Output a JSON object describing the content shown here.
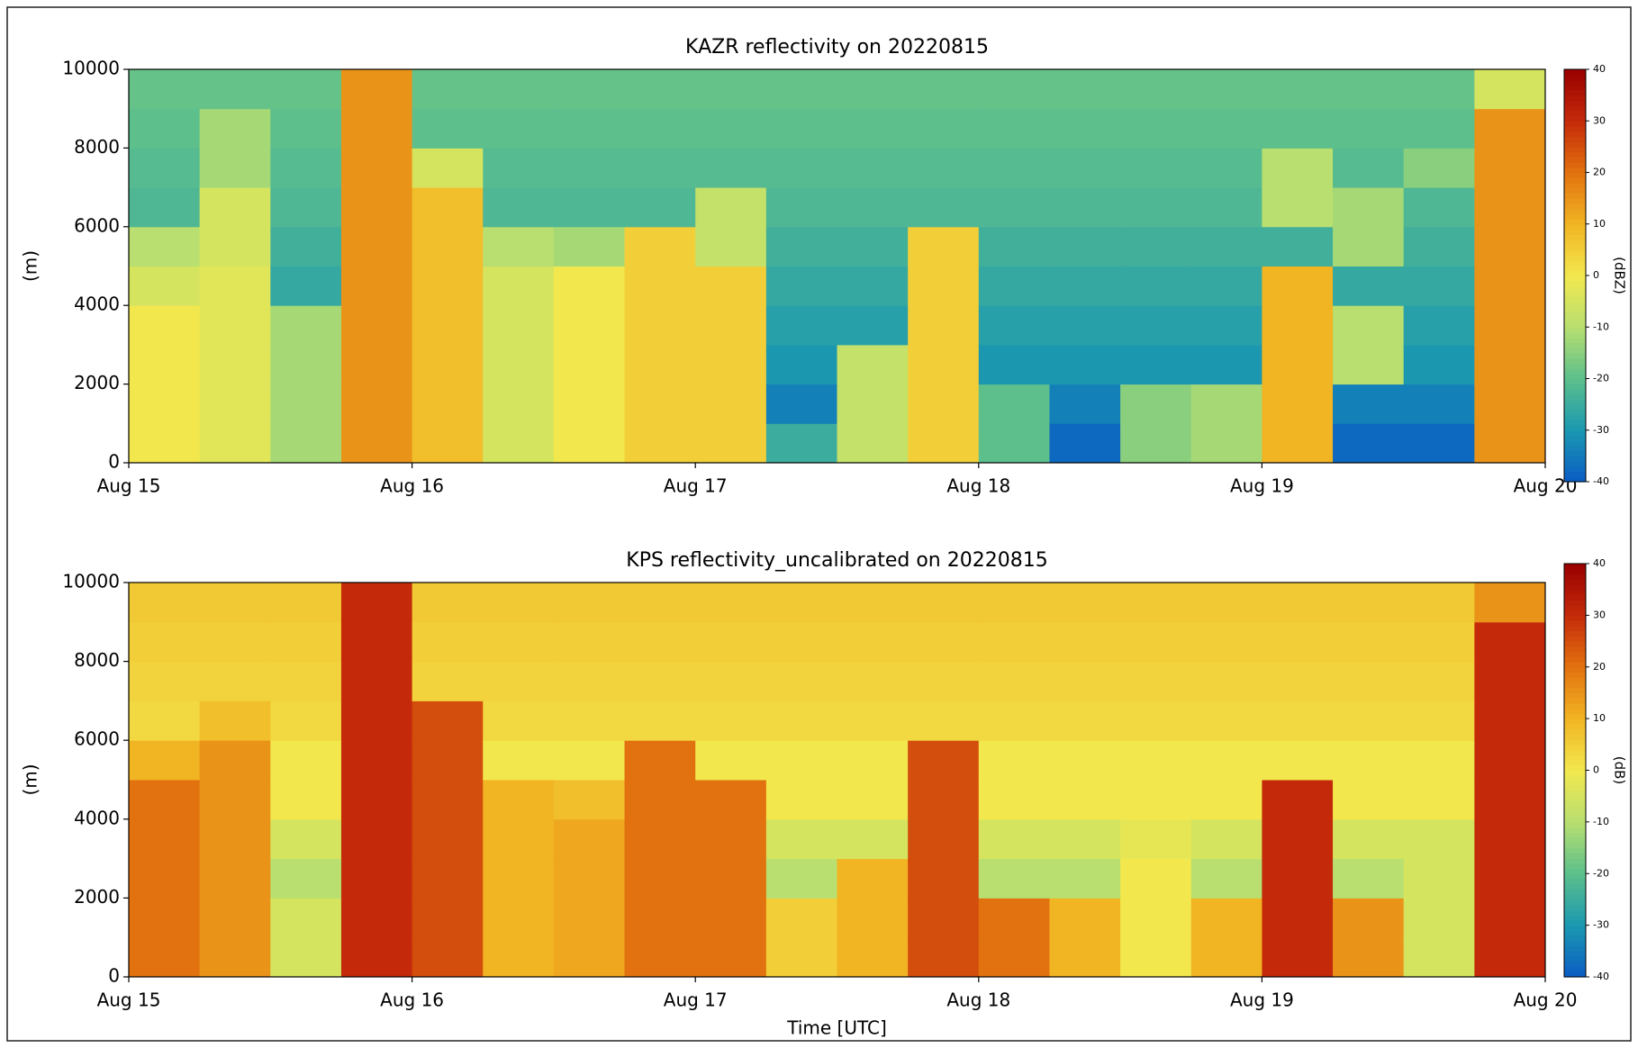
{
  "chart_data": [
    {
      "type": "heatmap",
      "title": "KAZR reflectivity on 20220815",
      "ylabel": "(m)",
      "colorbar_label": "(dBZ)",
      "xlim": [
        "Aug 15",
        "Aug 20"
      ],
      "xticks": [
        "Aug 15",
        "Aug 16",
        "Aug 17",
        "Aug 18",
        "Aug 19",
        "Aug 20"
      ],
      "ylim": [
        0,
        10000
      ],
      "yticks": [
        0,
        2000,
        4000,
        6000,
        8000,
        10000
      ],
      "clim": [
        -40,
        40
      ],
      "cticks": [
        -40,
        -30,
        -20,
        -10,
        0,
        10,
        20,
        30,
        40
      ],
      "colormap": [
        "#0a5cc4",
        "#1b98b0",
        "#5cbf8c",
        "#b8df70",
        "#f2e84e",
        "#f1b423",
        "#e2720f",
        "#c42a0a",
        "#990000"
      ],
      "z": [
        [
          0,
          0,
          0,
          0,
          -5,
          -10,
          -22,
          -21,
          -20,
          -19
        ],
        [
          -3,
          -3,
          -3,
          -3,
          -3,
          -5,
          -5,
          -12,
          -12,
          -19
        ],
        [
          -12,
          -12,
          -12,
          -12,
          -26,
          -24,
          -22,
          -21,
          -20,
          -19
        ],
        [
          15,
          15,
          15,
          15,
          15,
          15,
          15,
          15,
          15,
          15
        ],
        [
          8,
          8,
          8,
          8,
          8,
          8,
          8,
          -5,
          -20,
          -19
        ],
        [
          -5,
          -5,
          -5,
          -5,
          -5,
          -10,
          -22,
          -21,
          -20,
          -19
        ],
        [
          0,
          0,
          0,
          0,
          0,
          -12,
          -22,
          -21,
          -20,
          -19
        ],
        [
          5,
          5,
          5,
          5,
          5,
          5,
          -22,
          -21,
          -20,
          -19
        ],
        [
          5,
          5,
          5,
          5,
          5,
          -8,
          -8,
          -21,
          -20,
          -19
        ],
        [
          -25,
          -34,
          -30,
          -28,
          -26,
          -24,
          -22,
          -21,
          -20,
          -19
        ],
        [
          -8,
          -8,
          -8,
          -28,
          -26,
          -24,
          -22,
          -21,
          -20,
          -19
        ],
        [
          5,
          5,
          5,
          5,
          5,
          5,
          -22,
          -21,
          -20,
          -19
        ],
        [
          -20,
          -20,
          -30,
          -28,
          -26,
          -24,
          -22,
          -21,
          -20,
          -19
        ],
        [
          -38,
          -34,
          -30,
          -28,
          -26,
          -24,
          -22,
          -21,
          -20,
          -19
        ],
        [
          -15,
          -15,
          -30,
          -28,
          -26,
          -24,
          -22,
          -21,
          -20,
          -19
        ],
        [
          -12,
          -12,
          -30,
          -28,
          -26,
          -24,
          -22,
          -21,
          -20,
          -19
        ],
        [
          10,
          10,
          10,
          10,
          10,
          -24,
          -10,
          -10,
          -20,
          -19
        ],
        [
          -38,
          -34,
          -10,
          -10,
          -26,
          -12,
          -12,
          -21,
          -20,
          -19
        ],
        [
          -38,
          -34,
          -30,
          -28,
          -26,
          -24,
          -22,
          -15,
          -20,
          -19
        ],
        [
          15,
          15,
          15,
          15,
          15,
          15,
          15,
          15,
          15,
          -5
        ]
      ]
    },
    {
      "type": "heatmap",
      "title": "KPS reflectivity_uncalibrated on 20220815",
      "ylabel": "(m)",
      "xlabel": "Time [UTC]",
      "colorbar_label": "(dB)",
      "xlim": [
        "Aug 15",
        "Aug 20"
      ],
      "xticks": [
        "Aug 15",
        "Aug 16",
        "Aug 17",
        "Aug 18",
        "Aug 19",
        "Aug 20"
      ],
      "ylim": [
        0,
        10000
      ],
      "yticks": [
        0,
        2000,
        4000,
        6000,
        8000,
        10000
      ],
      "clim": [
        -40,
        40
      ],
      "cticks": [
        -40,
        -30,
        -20,
        -10,
        0,
        10,
        20,
        30,
        40
      ],
      "colormap": [
        "#0a5cc4",
        "#1b98b0",
        "#5cbf8c",
        "#b8df70",
        "#f2e84e",
        "#f1b423",
        "#e2720f",
        "#c42a0a",
        "#990000"
      ],
      "z": [
        [
          20,
          20,
          20,
          20,
          20,
          10,
          3,
          4,
          5,
          6
        ],
        [
          15,
          15,
          15,
          15,
          15,
          15,
          8,
          4,
          5,
          6
        ],
        [
          -5,
          -5,
          -10,
          -5,
          0,
          0,
          3,
          4,
          5,
          6
        ],
        [
          30,
          30,
          30,
          30,
          30,
          30,
          30,
          30,
          30,
          30
        ],
        [
          25,
          25,
          25,
          25,
          25,
          25,
          25,
          4,
          5,
          6
        ],
        [
          10,
          10,
          10,
          10,
          10,
          0,
          3,
          4,
          5,
          6
        ],
        [
          12,
          12,
          12,
          12,
          8,
          0,
          3,
          4,
          5,
          6
        ],
        [
          20,
          20,
          20,
          20,
          20,
          20,
          3,
          4,
          5,
          6
        ],
        [
          20,
          20,
          20,
          20,
          20,
          0,
          3,
          4,
          5,
          6
        ],
        [
          5,
          5,
          -10,
          -5,
          0,
          0,
          3,
          4,
          5,
          6
        ],
        [
          10,
          10,
          10,
          -5,
          0,
          0,
          3,
          4,
          5,
          6
        ],
        [
          25,
          25,
          25,
          25,
          25,
          25,
          3,
          4,
          5,
          6
        ],
        [
          20,
          20,
          -10,
          -5,
          0,
          0,
          3,
          4,
          5,
          6
        ],
        [
          10,
          10,
          -10,
          -5,
          0,
          0,
          3,
          4,
          5,
          6
        ],
        [
          0,
          0,
          0,
          -2,
          0,
          0,
          3,
          4,
          5,
          6
        ],
        [
          10,
          10,
          -10,
          -5,
          0,
          0,
          3,
          4,
          5,
          6
        ],
        [
          30,
          30,
          30,
          30,
          30,
          0,
          3,
          4,
          5,
          6
        ],
        [
          15,
          15,
          -10,
          -5,
          0,
          0,
          3,
          4,
          5,
          6
        ],
        [
          -5,
          -5,
          -5,
          -5,
          0,
          0,
          3,
          4,
          5,
          6
        ],
        [
          30,
          30,
          30,
          30,
          30,
          30,
          30,
          30,
          30,
          15
        ]
      ]
    }
  ]
}
